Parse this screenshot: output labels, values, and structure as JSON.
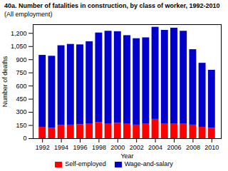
{
  "chart_data": {
    "type": "bar",
    "stacked": true,
    "title": "40a. Number of fatalities in construction, by class of worker, 1992-2010",
    "subtitle": "(All employment)",
    "xlabel": "Year",
    "ylabel": "Number of deaths",
    "x": [
      1992,
      1993,
      1994,
      1995,
      1996,
      1997,
      1998,
      1999,
      2000,
      2001,
      2002,
      2003,
      2004,
      2005,
      2006,
      2007,
      2008,
      2009,
      2010
    ],
    "xlim": [
      1991,
      2011
    ],
    "xticks": [
      1992,
      1994,
      1996,
      1998,
      2000,
      2002,
      2004,
      2006,
      2008,
      2010
    ],
    "ylim": [
      0,
      1300
    ],
    "yticks": [
      0,
      150,
      300,
      450,
      600,
      750,
      900,
      {
        "value": 1050,
        "label": "1,050"
      },
      {
        "value": 1200,
        "label": "1,200"
      }
    ],
    "series": [
      {
        "name": "Self-employed",
        "color": "#ff0000",
        "values": [
          130,
          120,
          150,
          155,
          160,
          165,
          185,
          165,
          175,
          165,
          155,
          165,
          220,
          165,
          165,
          165,
          155,
          130,
          120
        ]
      },
      {
        "name": "Wage-and-salary",
        "color": "#0000cc",
        "values": [
          820,
          820,
          910,
          920,
          910,
          940,
          1020,
          1060,
          1045,
          1010,
          985,
          985,
          1050,
          1070,
          1095,
          1060,
          860,
          730,
          660
        ]
      }
    ]
  }
}
